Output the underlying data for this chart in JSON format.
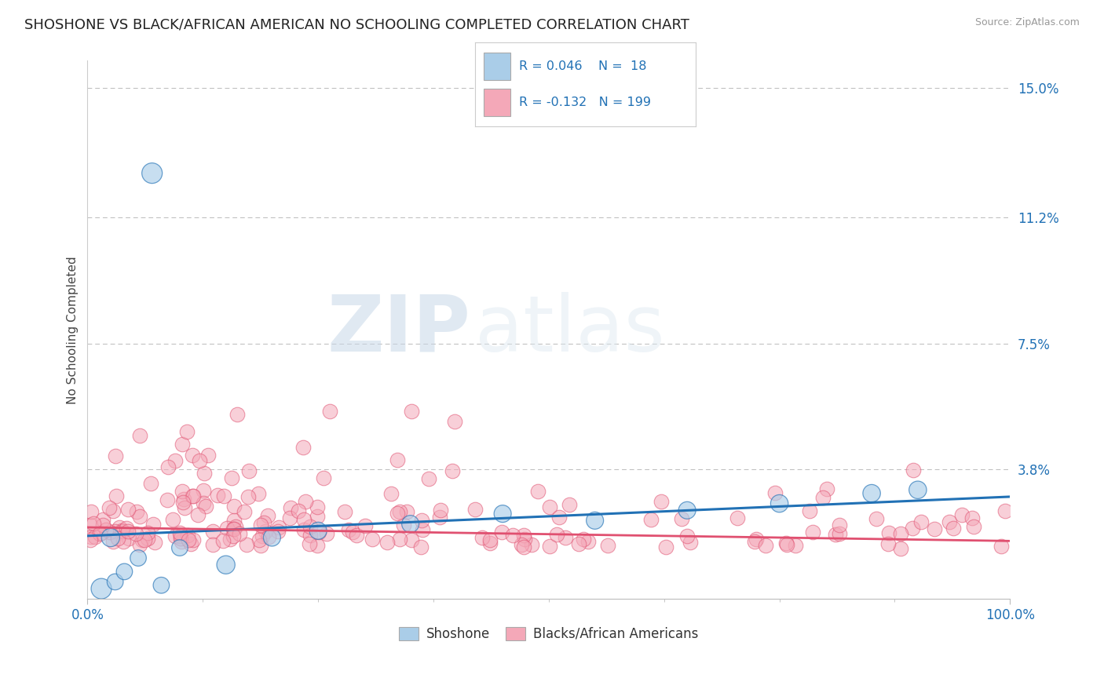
{
  "title": "SHOSHONE VS BLACK/AFRICAN AMERICAN NO SCHOOLING COMPLETED CORRELATION CHART",
  "source": "Source: ZipAtlas.com",
  "ylabel": "No Schooling Completed",
  "xlim": [
    0,
    100
  ],
  "ylim": [
    0,
    15.8
  ],
  "yticks": [
    0.0,
    3.8,
    7.5,
    11.2,
    15.0
  ],
  "ytick_labels": [
    "",
    "3.8%",
    "7.5%",
    "11.2%",
    "15.0%"
  ],
  "xtick_labels": [
    "0.0%",
    "100.0%"
  ],
  "legend_r1": "R = 0.046",
  "legend_n1": "N =  18",
  "legend_r2": "R = -0.132",
  "legend_n2": "N = 199",
  "color_blue": "#aacde8",
  "color_pink": "#f4a8b8",
  "color_blue_line": "#2171b5",
  "color_pink_line": "#e05070",
  "background": "#ffffff",
  "grid_color": "#bbbbbb",
  "watermark_text": "ZIP",
  "watermark_text2": "atlas",
  "blue_line_x": [
    0,
    100
  ],
  "blue_line_y": [
    1.85,
    3.0
  ],
  "pink_line_x": [
    0,
    100
  ],
  "pink_line_y": [
    2.1,
    1.7
  ],
  "title_fontsize": 13,
  "axis_label_fontsize": 11,
  "tick_fontsize": 12,
  "legend_fontsize": 12
}
